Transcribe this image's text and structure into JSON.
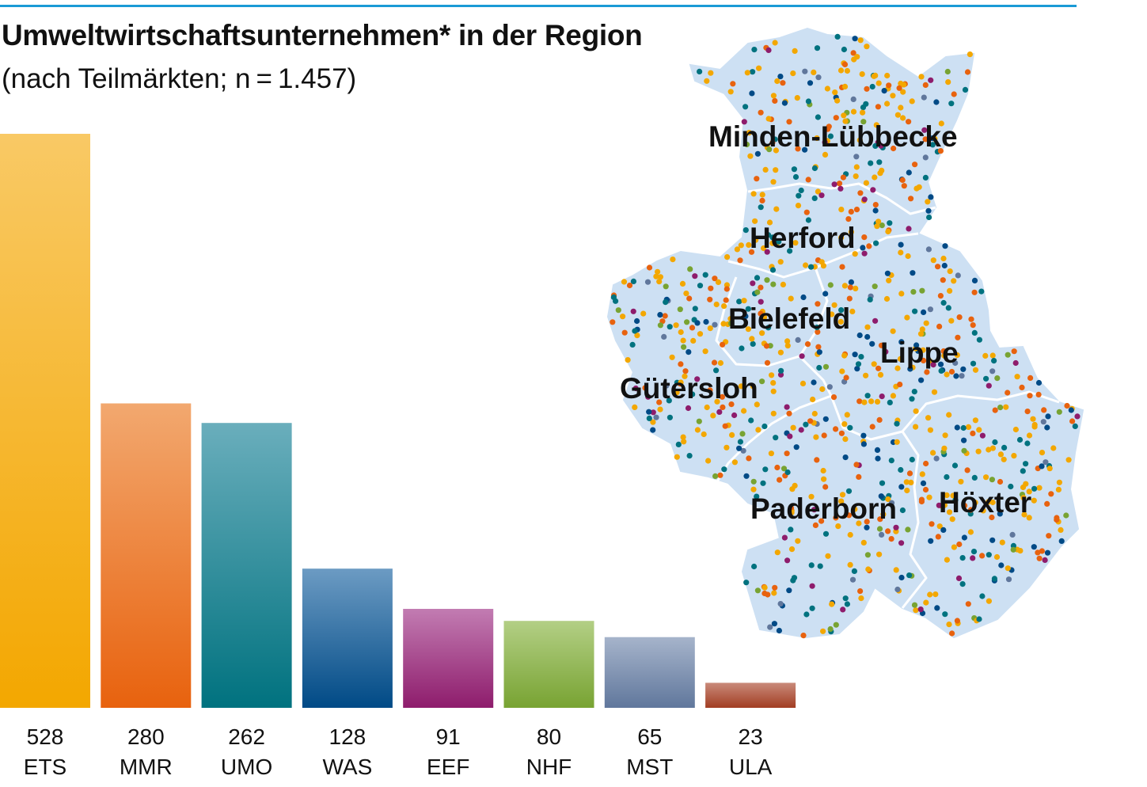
{
  "header": {
    "title": "Umweltwirtschaftsunternehmen* in der Region",
    "subtitle": "(nach Teilmärkten; n = 1.457)"
  },
  "colors": {
    "accent_line": "#1a9ad6",
    "map_fill": "#cde0f3"
  },
  "chart_data": {
    "type": "bar",
    "title": "Umweltwirtschaftsunternehmen* in der Region",
    "subtitle": "(nach Teilmärkten; n = 1.457)",
    "categories": [
      "ETS",
      "MMR",
      "UMO",
      "WAS",
      "EEF",
      "NHF",
      "MST",
      "ULA"
    ],
    "values": [
      528,
      280,
      262,
      128,
      91,
      80,
      65,
      23
    ],
    "display_values": [
      "528",
      "280",
      "262",
      "128",
      "91",
      "80",
      "65",
      "23"
    ],
    "colors": [
      {
        "top": "#f9c965",
        "bottom": "#f3a700"
      },
      {
        "top": "#f2a86f",
        "bottom": "#e8620e"
      },
      {
        "top": "#6aaebc",
        "bottom": "#00727f"
      },
      {
        "top": "#6c9bc3",
        "bottom": "#004a86"
      },
      {
        "top": "#c27cb2",
        "bottom": "#8e1c6c"
      },
      {
        "top": "#b3cf85",
        "bottom": "#78a332"
      },
      {
        "top": "#a6b4cb",
        "bottom": "#60779c"
      },
      {
        "top": "#c98a7a",
        "bottom": "#a23d22"
      }
    ]
  },
  "map": {
    "regions": [
      "Minden-Lübbecke",
      "Herford",
      "Bielefeld",
      "Lippe",
      "Gütersloh",
      "Paderborn",
      "Höxter"
    ],
    "dot_colors": [
      "#f3a700",
      "#e8620e",
      "#00727f",
      "#004a86",
      "#8e1c6c",
      "#78a332",
      "#60779c"
    ]
  }
}
